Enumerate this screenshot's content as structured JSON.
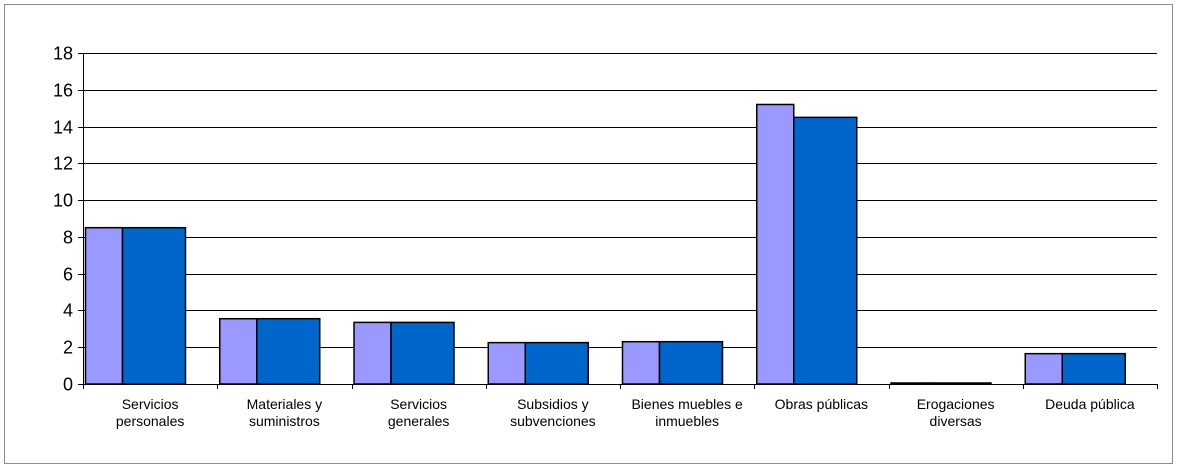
{
  "chart_data": {
    "type": "bar",
    "title": "",
    "xlabel": "",
    "ylabel": "",
    "ylim": [
      0,
      18
    ],
    "yticks": [
      0,
      2,
      4,
      6,
      8,
      10,
      12,
      14,
      16,
      18
    ],
    "grid": true,
    "legend": "none",
    "categories": [
      [
        "Servicios",
        "personales"
      ],
      [
        "Materiales y",
        "suministros"
      ],
      [
        "Servicios",
        "generales"
      ],
      [
        "Subsidios y",
        "subvenciones"
      ],
      [
        "Bienes muebles e",
        "inmuebles"
      ],
      [
        "Obras públicas"
      ],
      [
        "Erogaciones",
        "diversas"
      ],
      [
        "Deuda pública"
      ]
    ],
    "series": [
      {
        "color": "#9999ff",
        "values": [
          8.5,
          3.55,
          3.35,
          2.25,
          2.3,
          15.2,
          0.05,
          1.65
        ]
      },
      {
        "color": "#0066cc",
        "values": [
          8.5,
          3.55,
          3.35,
          2.25,
          2.3,
          14.5,
          0.05,
          1.65
        ]
      }
    ]
  }
}
